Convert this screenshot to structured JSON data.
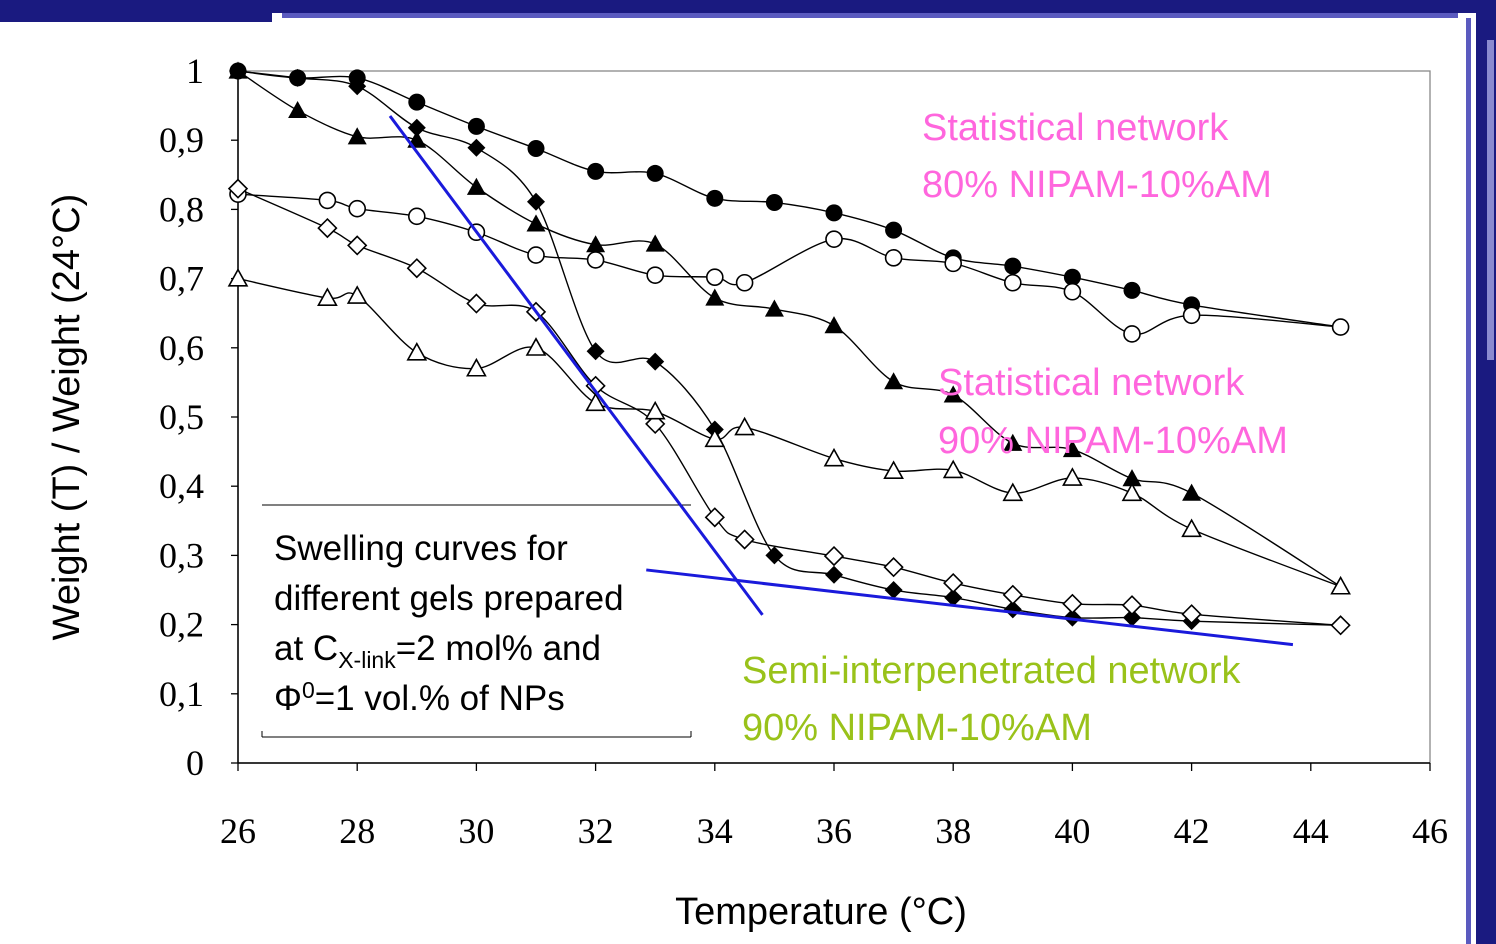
{
  "chart_data": {
    "type": "line",
    "xlabel": "Temperature (°C)",
    "ylabel": "Weight (T) / Weight (24°C)",
    "xlim": [
      26,
      46
    ],
    "ylim": [
      0,
      1
    ],
    "x_ticks": [
      "26",
      "28",
      "30",
      "32",
      "34",
      "36",
      "38",
      "40",
      "42",
      "44",
      "46"
    ],
    "y_ticks": [
      "0",
      "0,1",
      "0,2",
      "0,3",
      "0,4",
      "0,5",
      "0,6",
      "0,7",
      "0,8",
      "0,9",
      "1"
    ],
    "grid": false,
    "series": [
      {
        "marker": "filled-circle",
        "color": "#000000",
        "x": [
          26,
          27,
          28,
          29,
          30,
          31,
          32,
          33,
          34,
          35,
          36,
          37,
          38,
          39,
          40,
          41,
          42,
          44.5
        ],
        "y": [
          1.0,
          0.99,
          0.99,
          0.955,
          0.92,
          0.888,
          0.855,
          0.852,
          0.816,
          0.81,
          0.795,
          0.77,
          0.73,
          0.718,
          0.702,
          0.683,
          0.662,
          0.63
        ]
      },
      {
        "marker": "open-circle",
        "color": "#000000",
        "x": [
          26,
          27.5,
          28,
          29,
          30,
          31,
          32,
          33,
          34,
          34.5,
          36,
          37,
          38,
          39,
          40,
          41,
          42,
          44.5
        ],
        "y": [
          0.822,
          0.813,
          0.801,
          0.79,
          0.767,
          0.734,
          0.727,
          0.705,
          0.702,
          0.694,
          0.757,
          0.73,
          0.722,
          0.694,
          0.681,
          0.62,
          0.647,
          0.63
        ]
      },
      {
        "marker": "filled-triangle",
        "color": "#000000",
        "x": [
          26,
          27,
          28,
          29,
          30,
          31,
          32,
          33,
          34,
          35,
          36,
          37,
          38,
          39,
          40,
          41,
          42,
          44.5
        ],
        "y": [
          1.0,
          0.943,
          0.905,
          0.9,
          0.832,
          0.779,
          0.749,
          0.75,
          0.672,
          0.656,
          0.632,
          0.551,
          0.532,
          0.462,
          0.453,
          0.411,
          0.39,
          0.255
        ]
      },
      {
        "marker": "filled-diamond",
        "color": "#000000",
        "x": [
          26,
          27,
          28,
          29,
          30,
          31,
          32,
          33,
          34,
          35,
          36,
          37,
          38,
          39,
          40,
          41,
          42,
          44.5
        ],
        "y": [
          1.0,
          0.99,
          0.978,
          0.918,
          0.889,
          0.811,
          0.595,
          0.58,
          0.482,
          0.3,
          0.272,
          0.25,
          0.239,
          0.222,
          0.21,
          0.21,
          0.205,
          0.199
        ]
      },
      {
        "marker": "open-diamond",
        "color": "#000000",
        "x": [
          26,
          27.5,
          28,
          29,
          30,
          31,
          32,
          33,
          34,
          34.5,
          36,
          37,
          38,
          39,
          40,
          41,
          42,
          44.5
        ],
        "y": [
          0.83,
          0.773,
          0.748,
          0.715,
          0.664,
          0.652,
          0.545,
          0.49,
          0.355,
          0.323,
          0.299,
          0.283,
          0.26,
          0.243,
          0.23,
          0.228,
          0.215,
          0.199
        ]
      },
      {
        "marker": "open-triangle",
        "color": "#000000",
        "x": [
          26,
          27.5,
          28,
          29,
          30,
          31,
          32,
          33,
          34,
          34.5,
          36,
          37,
          38,
          39,
          40,
          41,
          42,
          44.5
        ],
        "y": [
          0.7,
          0.672,
          0.675,
          0.593,
          0.57,
          0.6,
          0.52,
          0.508,
          0.468,
          0.485,
          0.44,
          0.422,
          0.423,
          0.39,
          0.412,
          0.39,
          0.338,
          0.255
        ]
      }
    ],
    "guide_lines": [
      {
        "color": "#1a1adb",
        "x": [
          28.55,
          34.8
        ],
        "y": [
          0.935,
          0.214
        ]
      },
      {
        "color": "#1a1adb",
        "x": [
          32.85,
          43.7
        ],
        "y": [
          0.279,
          0.171
        ]
      }
    ],
    "annotations": [
      {
        "color": "#ff66dd",
        "lines": [
          "Statistical network",
          "80% NIPAM-10%AM"
        ]
      },
      {
        "color": "#ff66dd",
        "lines": [
          "Statistical network",
          "90% NIPAM-10%AM"
        ]
      },
      {
        "color": "#99c21a",
        "lines": [
          "Semi-interpenetrated network",
          "90% NIPAM-10%AM"
        ]
      }
    ],
    "textbox": {
      "line1": "Swelling curves for",
      "line2": "different gels prepared",
      "line3_pre": "at C",
      "line3_sub": "X-link",
      "line3_post": "=2 mol% and",
      "line4_pre": "Φ",
      "line4_sup": "0",
      "line4_post": "=1 vol.% of NPs"
    }
  },
  "frame": {
    "top_bar_color": "#1a1a80",
    "right_bar_color": "#1a1a80"
  }
}
